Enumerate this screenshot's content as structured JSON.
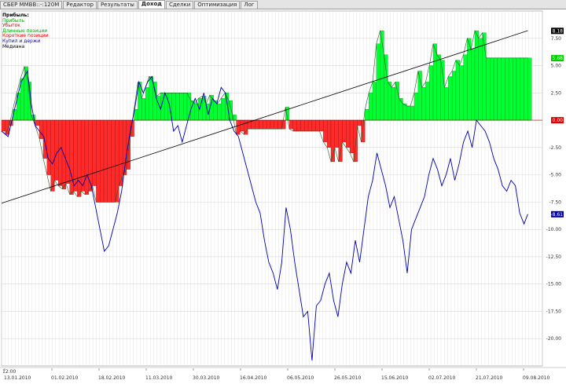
{
  "tabs": [
    {
      "label": "СБЕР MMBB::-:120M",
      "active": false
    },
    {
      "label": "Редактор",
      "active": false
    },
    {
      "label": "Результаты",
      "active": false
    },
    {
      "label": "Доход",
      "active": true
    },
    {
      "label": "Сделки",
      "active": false
    },
    {
      "label": "Оптимизация",
      "active": false
    },
    {
      "label": "Лог",
      "active": false
    }
  ],
  "legend": {
    "title": "Прибыль:",
    "items": [
      {
        "label": "Прибыль",
        "color": "#00aa00"
      },
      {
        "label": "Убыток",
        "color": "#dd0000"
      },
      {
        "label": "Длинные позиции",
        "color": "#00aa00"
      },
      {
        "label": "Короткие позиции",
        "color": "#dd0000"
      },
      {
        "label": "Купил и держи",
        "color": "#0000aa"
      },
      {
        "label": "Медиана",
        "color": "#000000"
      }
    ]
  },
  "time_label": "12:00",
  "chart_data": {
    "type": "area",
    "x_ticks": [
      "13.01.2010",
      "01.02.2010",
      "18.02.2010",
      "11.03.2010",
      "30.03.2010",
      "16.04.2010",
      "06.05.2010",
      "26.05.2010",
      "15.06.2010",
      "02.07.2010",
      "21.07.2010",
      "09.08.2010"
    ],
    "y_ticks": [
      7.5,
      5.0,
      2.5,
      0.0,
      -2.5,
      -5.0,
      -7.5,
      -10.0,
      -12.5,
      -15.0,
      -17.5,
      -20.0
    ],
    "y_tick_labels": [
      "7.50",
      "5.00",
      "2.50",
      "0.00",
      "-2.50",
      "-5.00",
      "-7.50",
      "-10.00",
      "-12.50",
      "-15.00",
      "-17.50",
      "-20.00"
    ],
    "ylim": [
      -22.5,
      10.0
    ],
    "xlim": [
      0,
      100
    ],
    "right_tags": [
      {
        "label": "8.18",
        "value": 8.18,
        "bg": "#000000",
        "fg": "#ffffff"
      },
      {
        "label": "5.68",
        "value": 5.68,
        "bg": "#00cc00",
        "fg": "#ffffff"
      },
      {
        "label": "0.00",
        "value": 0.0,
        "bg": "#dd0000",
        "fg": "#ffffff"
      },
      {
        "label": "-8.61",
        "value": -8.61,
        "bg": "#0000aa",
        "fg": "#ffffff"
      }
    ],
    "series": [
      {
        "name": "Прибыль",
        "kind": "profit",
        "points": [
          [
            0,
            -1.0
          ],
          [
            0.7,
            -1.3
          ],
          [
            1.4,
            -0.5
          ],
          [
            2.1,
            1.0
          ],
          [
            2.8,
            2.5
          ],
          [
            3.5,
            3.8
          ],
          [
            4.2,
            4.9
          ],
          [
            4.9,
            3.5
          ],
          [
            5.5,
            0.5
          ],
          [
            6.2,
            -0.5
          ],
          [
            7.0,
            -1.7
          ],
          [
            7.7,
            -3.5
          ],
          [
            8.4,
            -5.0
          ],
          [
            9.1,
            -6.5
          ],
          [
            9.8,
            -5.5
          ],
          [
            10.5,
            -6.0
          ],
          [
            11.2,
            -6.3
          ],
          [
            11.9,
            -5.8
          ],
          [
            12.6,
            -6.8
          ],
          [
            13.3,
            -6.5
          ],
          [
            14.0,
            -7.0
          ],
          [
            14.7,
            -6.5
          ],
          [
            15.4,
            -6.8
          ],
          [
            16.1,
            -6.5
          ],
          [
            16.8,
            -6.0
          ],
          [
            17.5,
            -7.5
          ],
          [
            18.2,
            -7.5
          ],
          [
            18.9,
            -7.5
          ],
          [
            19.6,
            -7.5
          ],
          [
            20.3,
            -7.5
          ],
          [
            21.0,
            -7.5
          ],
          [
            21.7,
            -6.0
          ],
          [
            22.4,
            -5.0
          ],
          [
            23.1,
            -4.5
          ],
          [
            23.8,
            -1.5
          ],
          [
            24.5,
            1.0
          ],
          [
            25.2,
            3.5
          ],
          [
            25.9,
            2.0
          ],
          [
            26.6,
            3.0
          ],
          [
            27.3,
            4.0
          ],
          [
            28.0,
            3.5
          ],
          [
            28.7,
            2.2
          ],
          [
            29.4,
            2.5
          ],
          [
            30.1,
            2.5
          ],
          [
            30.8,
            2.5
          ],
          [
            31.5,
            2.5
          ],
          [
            32.2,
            2.5
          ],
          [
            32.9,
            2.5
          ],
          [
            33.6,
            2.5
          ],
          [
            34.3,
            2.5
          ],
          [
            35.0,
            1.8
          ],
          [
            35.7,
            1.5
          ],
          [
            36.4,
            2.0
          ],
          [
            37.1,
            2.2
          ],
          [
            37.8,
            1.5
          ],
          [
            38.5,
            2.3
          ],
          [
            39.2,
            1.8
          ],
          [
            39.9,
            1.5
          ],
          [
            40.6,
            2.0
          ],
          [
            41.3,
            2.5
          ],
          [
            42.0,
            1.8
          ],
          [
            42.7,
            0.5
          ],
          [
            43.4,
            -1.3
          ],
          [
            44.1,
            -1.0
          ],
          [
            44.8,
            -1.3
          ],
          [
            45.5,
            -0.8
          ],
          [
            46.2,
            -0.8
          ],
          [
            46.9,
            -0.8
          ],
          [
            47.6,
            -0.8
          ],
          [
            48.3,
            -0.8
          ],
          [
            49.0,
            -0.8
          ],
          [
            49.7,
            -0.8
          ],
          [
            50.4,
            -0.8
          ],
          [
            51.1,
            -0.8
          ],
          [
            51.8,
            -0.8
          ],
          [
            52.5,
            1.2
          ],
          [
            53.2,
            -0.8
          ],
          [
            53.9,
            -1.0
          ],
          [
            54.6,
            -1.0
          ],
          [
            55.3,
            -1.0
          ],
          [
            56.0,
            -1.0
          ],
          [
            56.7,
            -1.0
          ],
          [
            57.4,
            -1.0
          ],
          [
            58.1,
            -1.0
          ],
          [
            58.8,
            -1.0
          ],
          [
            59.5,
            -2.0
          ],
          [
            60.2,
            -2.5
          ],
          [
            60.9,
            -3.8
          ],
          [
            61.6,
            -2.5
          ],
          [
            62.3,
            -3.8
          ],
          [
            63.0,
            -2.0
          ],
          [
            63.7,
            -2.5
          ],
          [
            64.4,
            -3.0
          ],
          [
            65.1,
            -3.8
          ],
          [
            65.8,
            -0.5
          ],
          [
            66.5,
            -2.0
          ],
          [
            67.2,
            1.0
          ],
          [
            67.9,
            2.5
          ],
          [
            68.6,
            3.5
          ],
          [
            69.3,
            7.0
          ],
          [
            70.0,
            8.2
          ],
          [
            70.7,
            6.0
          ],
          [
            71.4,
            3.5
          ],
          [
            72.1,
            3.0
          ],
          [
            72.8,
            3.5
          ],
          [
            73.5,
            2.0
          ],
          [
            74.2,
            1.5
          ],
          [
            74.9,
            1.3
          ],
          [
            75.6,
            1.3
          ],
          [
            76.3,
            2.5
          ],
          [
            77.0,
            4.5
          ],
          [
            77.7,
            3.0
          ],
          [
            78.4,
            3.5
          ],
          [
            79.1,
            5.0
          ],
          [
            79.8,
            7.0
          ],
          [
            80.5,
            6.0
          ],
          [
            81.2,
            5.5
          ],
          [
            81.9,
            3.0
          ],
          [
            82.6,
            4.0
          ],
          [
            83.3,
            4.5
          ],
          [
            84.0,
            5.5
          ],
          [
            84.7,
            5.0
          ],
          [
            85.4,
            6.0
          ],
          [
            86.1,
            7.5
          ],
          [
            86.8,
            6.5
          ],
          [
            87.5,
            8.2
          ],
          [
            88.2,
            7.5
          ],
          [
            88.9,
            8.0
          ],
          [
            89.6,
            5.7
          ],
          [
            90.3,
            5.7
          ],
          [
            91.0,
            5.7
          ],
          [
            91.7,
            5.7
          ],
          [
            92.4,
            5.7
          ],
          [
            93.1,
            5.7
          ],
          [
            93.8,
            5.7
          ],
          [
            94.5,
            5.7
          ],
          [
            95.2,
            5.7
          ],
          [
            95.9,
            5.7
          ],
          [
            96.6,
            5.7
          ],
          [
            97.3,
            5.7
          ]
        ]
      },
      {
        "name": "Купил и держи",
        "kind": "buyhold",
        "points": [
          [
            0,
            -1.0
          ],
          [
            1.2,
            -1.5
          ],
          [
            2.4,
            1.0
          ],
          [
            3.6,
            3.5
          ],
          [
            4.8,
            4.5
          ],
          [
            5.5,
            1.5
          ],
          [
            6.2,
            -0.5
          ],
          [
            7.0,
            -1.0
          ],
          [
            7.8,
            -1.5
          ],
          [
            8.6,
            -3.5
          ],
          [
            9.4,
            -4.0
          ],
          [
            10.2,
            -3.0
          ],
          [
            11.0,
            -2.5
          ],
          [
            11.8,
            -3.5
          ],
          [
            12.6,
            -4.5
          ],
          [
            13.4,
            -6.0
          ],
          [
            14.2,
            -5.5
          ],
          [
            15.0,
            -6.0
          ],
          [
            15.8,
            -5.0
          ],
          [
            16.6,
            -6.0
          ],
          [
            17.4,
            -8.0
          ],
          [
            18.2,
            -10.0
          ],
          [
            19.0,
            -12.0
          ],
          [
            19.8,
            -11.5
          ],
          [
            20.6,
            -10.0
          ],
          [
            21.4,
            -8.5
          ],
          [
            22.2,
            -6.5
          ],
          [
            23.0,
            -3.5
          ],
          [
            23.8,
            -1.0
          ],
          [
            24.6,
            1.0
          ],
          [
            25.4,
            3.5
          ],
          [
            26.2,
            2.5
          ],
          [
            27.0,
            3.5
          ],
          [
            27.8,
            4.0
          ],
          [
            28.6,
            2.0
          ],
          [
            29.4,
            1.0
          ],
          [
            30.2,
            2.5
          ],
          [
            31.0,
            1.5
          ],
          [
            31.8,
            -1.0
          ],
          [
            32.6,
            -0.5
          ],
          [
            33.4,
            -2.0
          ],
          [
            34.2,
            -0.5
          ],
          [
            35.0,
            1.0
          ],
          [
            35.8,
            2.0
          ],
          [
            36.6,
            1.0
          ],
          [
            37.4,
            2.5
          ],
          [
            38.2,
            0.5
          ],
          [
            39.0,
            2.0
          ],
          [
            39.8,
            1.5
          ],
          [
            40.6,
            3.0
          ],
          [
            41.4,
            2.5
          ],
          [
            42.2,
            0.0
          ],
          [
            43.0,
            -1.0
          ],
          [
            43.8,
            -1.5
          ],
          [
            44.6,
            -3.0
          ],
          [
            45.4,
            -4.5
          ],
          [
            46.2,
            -6.0
          ],
          [
            47.0,
            -7.5
          ],
          [
            47.8,
            -8.5
          ],
          [
            48.6,
            -11.0
          ],
          [
            49.4,
            -13.0
          ],
          [
            50.2,
            -14.0
          ],
          [
            51.0,
            -15.5
          ],
          [
            51.8,
            -13.0
          ],
          [
            52.6,
            -8.0
          ],
          [
            53.4,
            -10.0
          ],
          [
            54.2,
            -13.0
          ],
          [
            55.0,
            -15.5
          ],
          [
            55.8,
            -18.0
          ],
          [
            56.6,
            -17.5
          ],
          [
            57.4,
            -22.0
          ],
          [
            58.2,
            -17.0
          ],
          [
            59.0,
            -16.5
          ],
          [
            59.8,
            -15.0
          ],
          [
            60.6,
            -14.0
          ],
          [
            61.4,
            -16.5
          ],
          [
            62.2,
            -18.0
          ],
          [
            63.0,
            -15.0
          ],
          [
            63.8,
            -13.0
          ],
          [
            64.6,
            -14.0
          ],
          [
            65.4,
            -11.0
          ],
          [
            66.2,
            -13.0
          ],
          [
            67.0,
            -10.0
          ],
          [
            67.8,
            -7.0
          ],
          [
            68.6,
            -5.5
          ],
          [
            69.4,
            -3.0
          ],
          [
            70.2,
            -4.5
          ],
          [
            71.0,
            -6.0
          ],
          [
            71.8,
            -8.0
          ],
          [
            72.6,
            -7.0
          ],
          [
            73.4,
            -9.0
          ],
          [
            74.2,
            -11.0
          ],
          [
            75.0,
            -14.0
          ],
          [
            75.8,
            -10.0
          ],
          [
            76.6,
            -9.0
          ],
          [
            77.4,
            -8.0
          ],
          [
            78.2,
            -7.0
          ],
          [
            79.0,
            -5.0
          ],
          [
            79.8,
            -3.5
          ],
          [
            80.6,
            -4.5
          ],
          [
            81.4,
            -6.0
          ],
          [
            82.2,
            -5.0
          ],
          [
            83.0,
            -3.5
          ],
          [
            83.8,
            -5.5
          ],
          [
            84.6,
            -4.0
          ],
          [
            85.4,
            -2.0
          ],
          [
            86.2,
            -1.0
          ],
          [
            87.0,
            -2.5
          ],
          [
            87.8,
            0.0
          ],
          [
            88.6,
            -0.5
          ],
          [
            89.4,
            -1.0
          ],
          [
            90.2,
            -2.0
          ],
          [
            91.0,
            -3.5
          ],
          [
            91.8,
            -4.5
          ],
          [
            92.6,
            -6.0
          ],
          [
            93.4,
            -6.5
          ],
          [
            94.2,
            -5.5
          ],
          [
            95.0,
            -6.0
          ],
          [
            95.8,
            -8.5
          ],
          [
            96.6,
            -9.5
          ],
          [
            97.3,
            -8.6
          ]
        ]
      },
      {
        "name": "Медиана",
        "kind": "median",
        "points": [
          [
            0,
            -7.6
          ],
          [
            97.3,
            8.2
          ]
        ]
      }
    ]
  }
}
